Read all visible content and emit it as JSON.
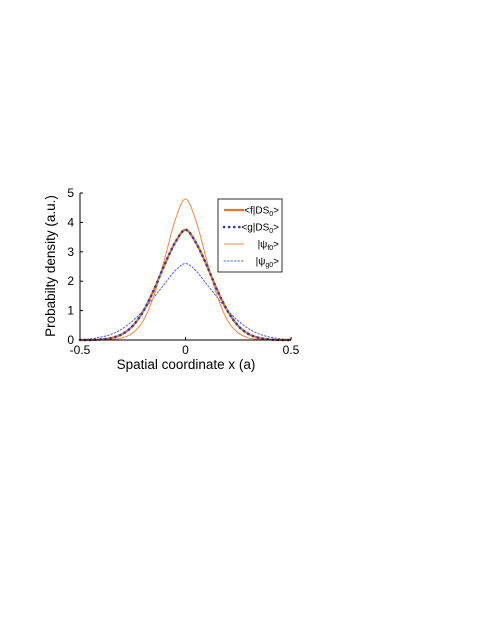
{
  "chart_data": {
    "type": "line",
    "title": "",
    "xlabel": "Spatial coordinate x (a)",
    "ylabel": "Probabilty density (a.u.)",
    "xlim": [
      -0.5,
      0.5
    ],
    "ylim": [
      0,
      5
    ],
    "x_ticks": [
      "-0.5",
      "0",
      "0.5"
    ],
    "y_ticks": [
      "0",
      "1",
      "2",
      "3",
      "4",
      "5"
    ],
    "grid": false,
    "legend_position": "top-right",
    "x": [
      -0.5,
      -0.45,
      -0.4,
      -0.35,
      -0.3,
      -0.25,
      -0.2,
      -0.15,
      -0.1,
      -0.05,
      0,
      0.05,
      0.1,
      0.15,
      0.2,
      0.25,
      0.3,
      0.35,
      0.4,
      0.45,
      0.5
    ],
    "series": [
      {
        "legend_main": "<f|DS",
        "legend_sub": "0",
        "legend_end": ">",
        "color": "#e8752e",
        "style": "solid-thick",
        "values": [
          0.0,
          0.0,
          0.02,
          0.07,
          0.2,
          0.48,
          0.98,
          1.7,
          2.55,
          3.3,
          3.75,
          3.3,
          2.55,
          1.7,
          0.98,
          0.48,
          0.2,
          0.07,
          0.02,
          0.0,
          0.0
        ]
      },
      {
        "legend_main": "<g|DS",
        "legend_sub": "0",
        "legend_end": ">",
        "color": "#2a3fb0",
        "style": "dotted-thick",
        "values": [
          0.0,
          0.0,
          0.02,
          0.07,
          0.2,
          0.48,
          0.98,
          1.7,
          2.55,
          3.3,
          3.75,
          3.3,
          2.55,
          1.7,
          0.98,
          0.48,
          0.2,
          0.07,
          0.02,
          0.0,
          0.0
        ]
      },
      {
        "legend_main": "|ψ",
        "legend_sub": "f0",
        "legend_end": ">",
        "color": "#f08a4b",
        "style": "solid-thin",
        "values": [
          0.0,
          0.0,
          0.0,
          0.02,
          0.07,
          0.24,
          0.66,
          1.5,
          2.73,
          4.05,
          4.8,
          4.05,
          2.73,
          1.5,
          0.66,
          0.24,
          0.07,
          0.02,
          0.0,
          0.0,
          0.0
        ]
      },
      {
        "legend_main": "|ψ",
        "legend_sub": "g0",
        "legend_end": ">",
        "color": "#4a5fe0",
        "style": "dotted-thin",
        "values": [
          0.02,
          0.04,
          0.1,
          0.2,
          0.38,
          0.65,
          1.01,
          1.45,
          1.9,
          2.35,
          2.6,
          2.35,
          1.9,
          1.45,
          1.01,
          0.65,
          0.38,
          0.2,
          0.1,
          0.04,
          0.02
        ]
      }
    ]
  }
}
